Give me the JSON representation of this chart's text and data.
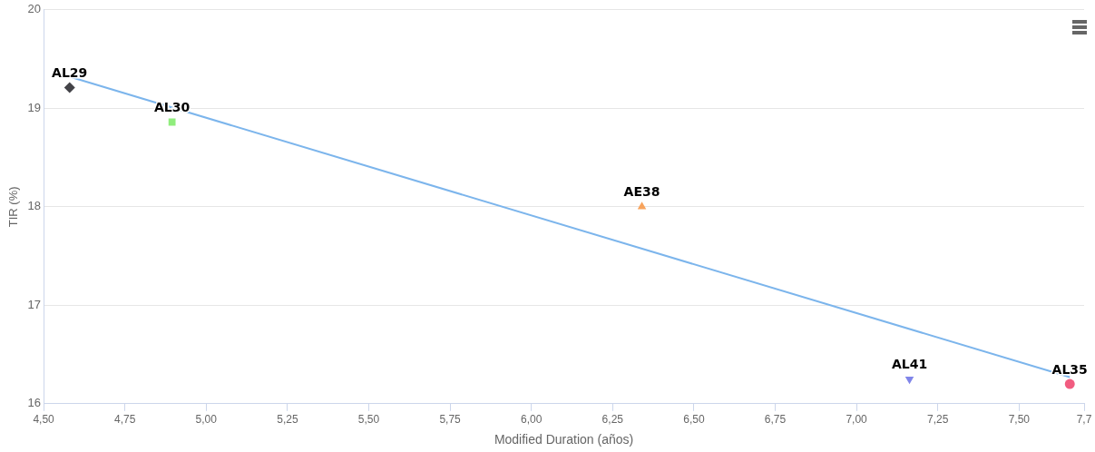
{
  "chart_data": {
    "type": "scatter",
    "xlabel": "Modified Duration (años)",
    "ylabel": "TIR (%)",
    "xlim": [
      4.5,
      7.7
    ],
    "xticks": [
      {
        "value": 4.5,
        "label": "4,50"
      },
      {
        "value": 4.75,
        "label": "4,75"
      },
      {
        "value": 5,
        "label": "5,00"
      },
      {
        "value": 5.25,
        "label": "5,25"
      },
      {
        "value": 5.5,
        "label": "5,50"
      },
      {
        "value": 5.75,
        "label": "5,75"
      },
      {
        "value": 6,
        "label": "6,00"
      },
      {
        "value": 6.25,
        "label": "6,25"
      },
      {
        "value": 6.5,
        "label": "6,50"
      },
      {
        "value": 6.75,
        "label": "6,75"
      },
      {
        "value": 7,
        "label": "7,00"
      },
      {
        "value": 7.25,
        "label": "7,25"
      },
      {
        "value": 7.5,
        "label": "7,50"
      },
      {
        "value": 7.7,
        "label": "7,7"
      }
    ],
    "ylim": [
      16,
      20
    ],
    "yticks": [
      16,
      17,
      18,
      19,
      20
    ],
    "grid": "y",
    "legend": false,
    "series": [
      {
        "type": "line",
        "color": "#7cb5ec",
        "x": [
          4.58,
          7.656
        ],
        "values": [
          19.32,
          16.27
        ],
        "marker": "none",
        "line_style": "solid"
      },
      {
        "name": "AL29",
        "color": "#434348",
        "x": [
          4.58
        ],
        "values": [
          19.21
        ],
        "marker": "diamond"
      },
      {
        "name": "AL30",
        "color": "#90ed7d",
        "x": [
          4.895
        ],
        "values": [
          18.86
        ],
        "marker": "square"
      },
      {
        "name": "AE38",
        "color": "#f7a35c",
        "x": [
          6.34
        ],
        "values": [
          18.0
        ],
        "marker": "triangle"
      },
      {
        "name": "AL41",
        "color": "#8085e9",
        "x": [
          7.163
        ],
        "values": [
          16.25
        ],
        "marker": "triangle-down"
      },
      {
        "name": "AL35",
        "color": "#f15c80",
        "x": [
          7.656
        ],
        "values": [
          16.2
        ],
        "marker": "circle"
      }
    ]
  }
}
